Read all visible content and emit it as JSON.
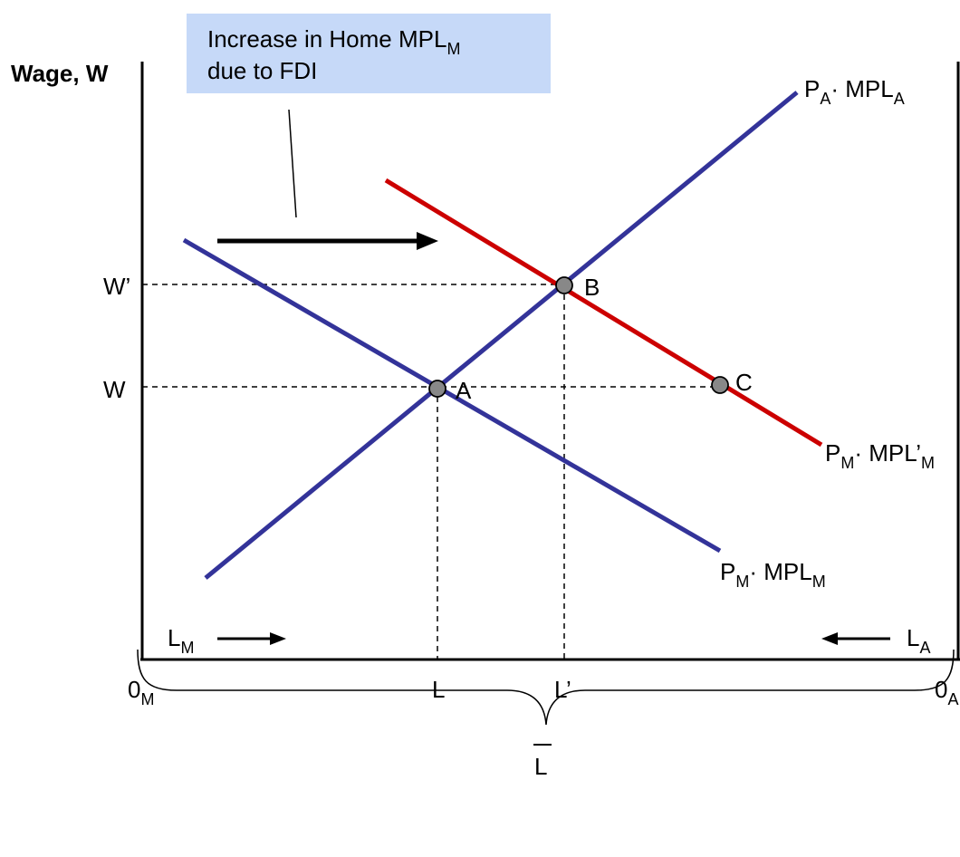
{
  "diagram": {
    "y_axis_label": "Wage, W",
    "callout": {
      "line1_prefix": "Increase in Home MPL",
      "line1_sub": "M",
      "line2": "due to FDI"
    },
    "curves": {
      "pa_mpla": {
        "p": "P",
        "p_sub": "A",
        "mpl": "· MPL",
        "mpl_sub": "A"
      },
      "pm_mplm": {
        "p": "P",
        "p_sub": "M",
        "mpl": "· MPL",
        "mpl_sub": "M"
      },
      "pm_mplm_prime": {
        "p": "P",
        "p_sub": "M",
        "mpl": "· MPL’",
        "mpl_sub": "M"
      }
    },
    "wage_labels": {
      "w_prime": "W’",
      "w": "W"
    },
    "points": {
      "a": "A",
      "b": "B",
      "c": "C"
    },
    "x_labels": {
      "origin_m": "0",
      "origin_m_sub": "M",
      "l": "L",
      "l_prime": "L’",
      "origin_a": "0",
      "origin_a_sub": "A"
    },
    "labor_labels": {
      "lm": "L",
      "lm_sub": "M",
      "la": "L",
      "la_sub": "A",
      "total": "L"
    },
    "colors": {
      "manufacturing_curve": "#333399",
      "shifted_curve": "#cc0000",
      "callout_fill": "#c6d9f8",
      "point_fill": "#888888"
    }
  }
}
